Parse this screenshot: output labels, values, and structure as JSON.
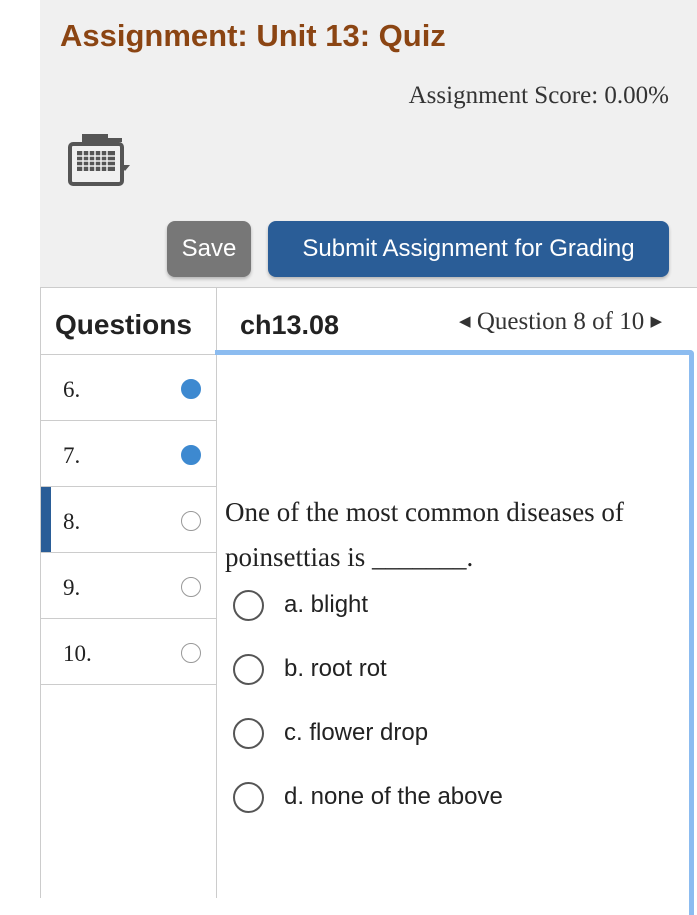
{
  "header": {
    "title": "Assignment: Unit 13: Quiz",
    "score": "Assignment Score: 0.00%",
    "keyboard_icon": "keyboard-icon"
  },
  "toolbar": {
    "save": "Save",
    "submit": "Submit Assignment for Grading"
  },
  "sidebar": {
    "heading": "Questions",
    "items": [
      {
        "label": "6.",
        "status": "answered"
      },
      {
        "label": "7.",
        "status": "answered"
      },
      {
        "label": "8.",
        "status": "unanswered",
        "current": true
      },
      {
        "label": "9.",
        "status": "unanswered"
      },
      {
        "label": "10.",
        "status": "unanswered"
      }
    ]
  },
  "question": {
    "id": "ch13.08",
    "nav": "Question 8 of 10",
    "prev": "◀",
    "next": "▶",
    "text": "One of the most common diseases of poinsettias is _______.",
    "options": [
      "a. blight",
      "b. root rot",
      "c. flower drop",
      "d. none of the above"
    ]
  },
  "colors": {
    "title": "#8b4513",
    "primary": "#2a5d97",
    "answered": "#3d89d0"
  }
}
